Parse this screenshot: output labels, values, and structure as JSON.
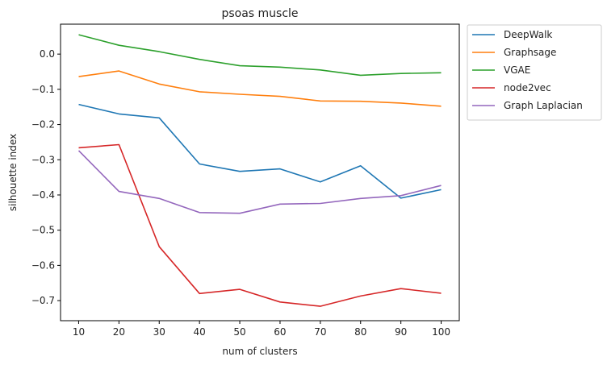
{
  "chart_data": {
    "type": "line",
    "title": "psoas muscle",
    "xlabel": "num of clusters",
    "ylabel": "silhouette index",
    "x": [
      10,
      20,
      30,
      40,
      50,
      60,
      70,
      80,
      90,
      100
    ],
    "xticks": [
      "10",
      "20",
      "30",
      "40",
      "50",
      "60",
      "70",
      "80",
      "90",
      "100"
    ],
    "yticks": [
      "0.0",
      "−0.1",
      "−0.2",
      "−0.3",
      "−0.4",
      "−0.5",
      "−0.6",
      "−0.7"
    ],
    "xlim": [
      5.5,
      104.5
    ],
    "ylim": [
      -0.757,
      0.085
    ],
    "grid": false,
    "legend_position": "outside-upper-right",
    "series": [
      {
        "name": "DeepWalk",
        "color": "#1f77b4",
        "values": [
          -0.143,
          -0.17,
          -0.181,
          -0.312,
          -0.333,
          -0.326,
          -0.363,
          -0.317,
          -0.409,
          -0.385
        ]
      },
      {
        "name": "Graphsage",
        "color": "#ff7f0e",
        "values": [
          -0.064,
          -0.048,
          -0.085,
          -0.107,
          -0.114,
          -0.12,
          -0.133,
          -0.134,
          -0.139,
          -0.148
        ]
      },
      {
        "name": "VGAE",
        "color": "#2ca02c",
        "values": [
          0.055,
          0.025,
          0.007,
          -0.015,
          -0.033,
          -0.037,
          -0.045,
          -0.06,
          -0.055,
          -0.053
        ]
      },
      {
        "name": "node2vec",
        "color": "#d62728",
        "values": [
          -0.266,
          -0.257,
          -0.547,
          -0.68,
          -0.668,
          -0.704,
          -0.716,
          -0.687,
          -0.666,
          -0.679
        ]
      },
      {
        "name": "Graph Laplacian",
        "color": "#9467bd",
        "values": [
          -0.274,
          -0.39,
          -0.41,
          -0.45,
          -0.452,
          -0.426,
          -0.424,
          -0.41,
          -0.402,
          -0.373
        ]
      }
    ]
  }
}
